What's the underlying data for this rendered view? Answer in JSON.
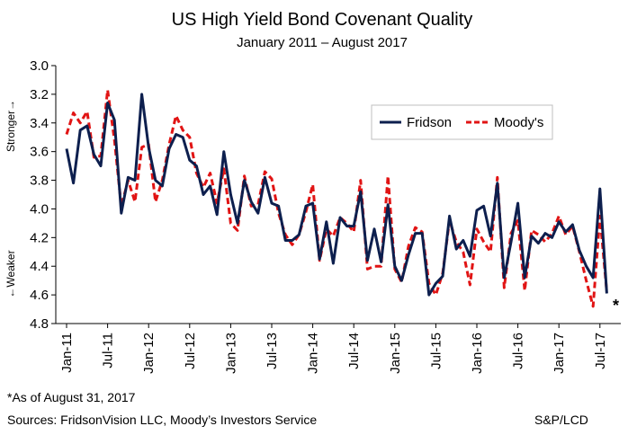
{
  "chart_data": {
    "type": "line",
    "title": "US High Yield Bond Covenant Quality",
    "subtitle": "January 2011 – August 2017",
    "ylabel_top": "Stronger→",
    "ylabel_bottom": "←Weaker",
    "ylim": [
      4.8,
      3.0
    ],
    "y_inverted": true,
    "y_ticks": [
      "3.0",
      "3.2",
      "3.4",
      "3.6",
      "3.8",
      "4.0",
      "4.2",
      "4.4",
      "4.6",
      "4.8"
    ],
    "x_tick_labels": [
      "Jan-11",
      "Jul-11",
      "Jan-12",
      "Jul-12",
      "Jan-13",
      "Jul-13",
      "Jan-14",
      "Jul-14",
      "Jan-15",
      "Jul-15",
      "Jan-16",
      "Jul-16",
      "Jan-17",
      "Jul-17"
    ],
    "grid": false,
    "legend_position": "top-right",
    "end_marker": "*",
    "series": [
      {
        "name": "Fridson",
        "color": "#0d1f4e",
        "dash": "solid",
        "values": [
          3.58,
          3.82,
          3.45,
          3.42,
          3.62,
          3.7,
          3.26,
          3.38,
          4.03,
          3.78,
          3.8,
          3.2,
          3.57,
          3.8,
          3.84,
          3.58,
          3.48,
          3.5,
          3.66,
          3.7,
          3.9,
          3.84,
          4.04,
          3.6,
          3.9,
          4.1,
          3.8,
          3.95,
          4.03,
          3.78,
          3.96,
          3.98,
          4.22,
          4.22,
          4.18,
          3.98,
          3.96,
          4.35,
          4.09,
          4.38,
          4.06,
          4.12,
          4.12,
          3.88,
          4.36,
          4.14,
          4.37,
          3.97,
          4.4,
          4.5,
          4.32,
          4.17,
          4.17,
          4.6,
          4.52,
          4.47,
          4.05,
          4.28,
          4.22,
          4.33,
          4.01,
          3.98,
          4.19,
          3.82,
          4.48,
          4.23,
          3.96,
          4.48,
          4.19,
          4.24,
          4.17,
          4.2,
          4.09,
          4.16,
          4.11,
          4.29,
          4.4,
          4.48,
          3.86,
          4.59
        ]
      },
      {
        "name": "Moody's",
        "color": "#e11414",
        "dash": "dashed",
        "values": [
          3.48,
          3.33,
          3.4,
          3.32,
          3.64,
          3.63,
          3.17,
          3.52,
          3.98,
          3.8,
          3.95,
          3.57,
          3.55,
          3.95,
          3.8,
          3.55,
          3.35,
          3.45,
          3.5,
          3.75,
          3.85,
          3.75,
          3.96,
          3.72,
          4.1,
          4.15,
          3.77,
          3.98,
          3.97,
          3.74,
          3.79,
          4.03,
          4.18,
          4.25,
          4.18,
          4.02,
          3.83,
          4.36,
          4.14,
          4.19,
          4.06,
          4.1,
          4.16,
          3.8,
          4.42,
          4.4,
          4.4,
          3.77,
          4.42,
          4.51,
          4.26,
          4.13,
          4.16,
          4.52,
          4.6,
          4.45,
          4.08,
          4.23,
          4.3,
          4.53,
          4.14,
          4.23,
          4.3,
          3.78,
          4.55,
          4.17,
          4.08,
          4.57,
          4.15,
          4.18,
          4.23,
          4.17,
          4.05,
          4.18,
          4.12,
          4.3,
          4.5,
          4.68,
          4.05,
          4.58
        ]
      }
    ]
  },
  "footnote": "*As of August 31, 2017",
  "sources": "Sources: FridsonVision LLC, Moody’s Investors Service",
  "credit": "S&P/LCD"
}
